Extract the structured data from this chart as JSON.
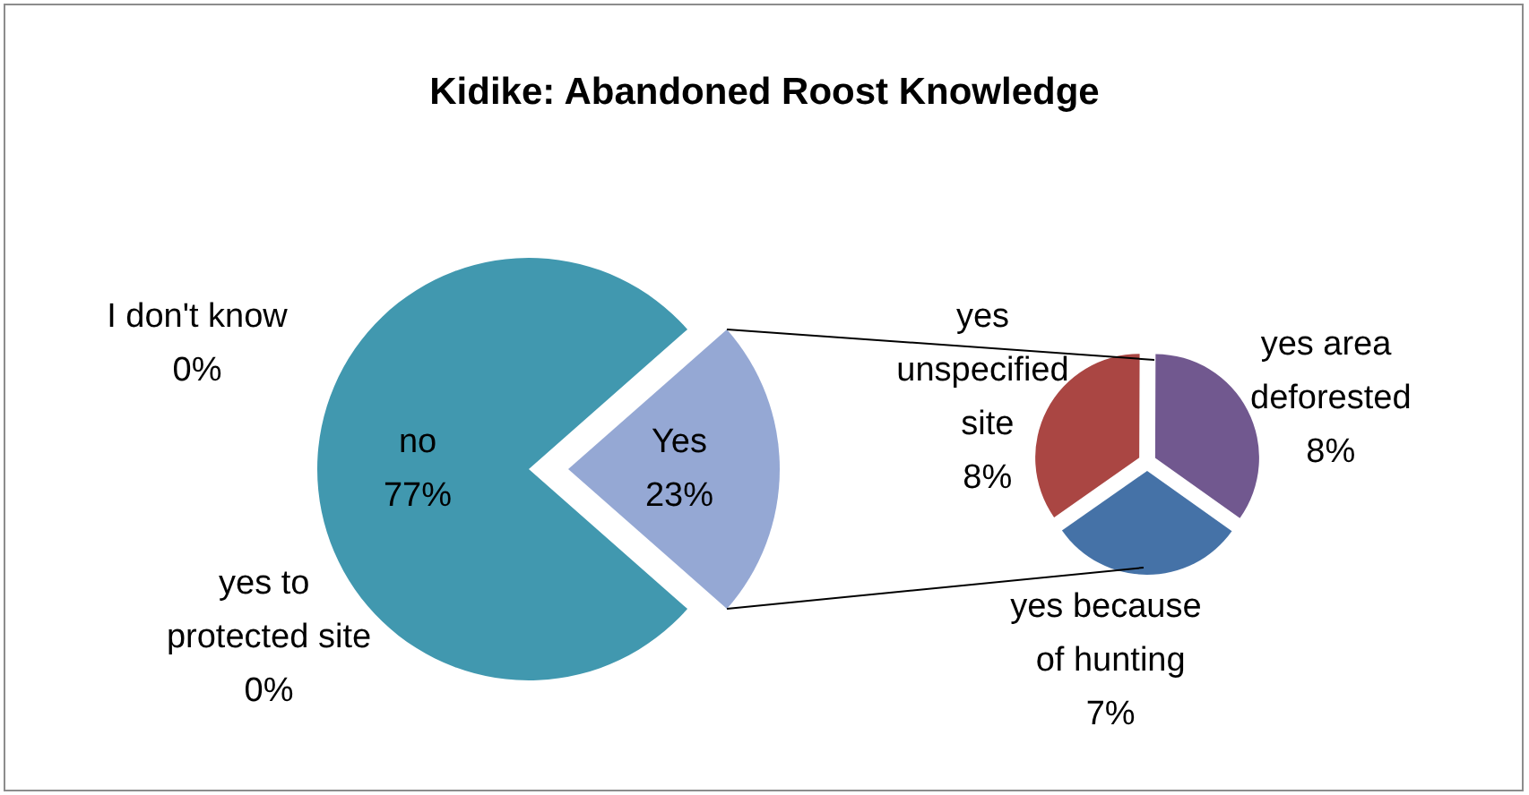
{
  "chart_data": [
    {
      "type": "pie",
      "title": "Kidike: Abandoned Roost Knowledge",
      "categories": [
        "Yes",
        "I don't know",
        "no",
        "yes to protected site"
      ],
      "values": [
        23,
        0,
        77,
        0
      ],
      "value_labels": [
        "23%",
        "0%",
        "77%",
        "0%"
      ],
      "colors": [
        "#95a8d4",
        "#4198af",
        "#4198af",
        "#4198af"
      ],
      "data_labels": true,
      "legend": false
    },
    {
      "type": "pie",
      "categories": [
        "yes unspecified site",
        "yes area deforested",
        "yes because of hunting"
      ],
      "values": [
        8,
        8,
        7
      ],
      "value_labels": [
        "8%",
        "8%",
        "7%"
      ],
      "colors": [
        "#aa4643",
        "#71588f",
        "#4572a7"
      ],
      "data_labels": true,
      "legend": false
    }
  ]
}
